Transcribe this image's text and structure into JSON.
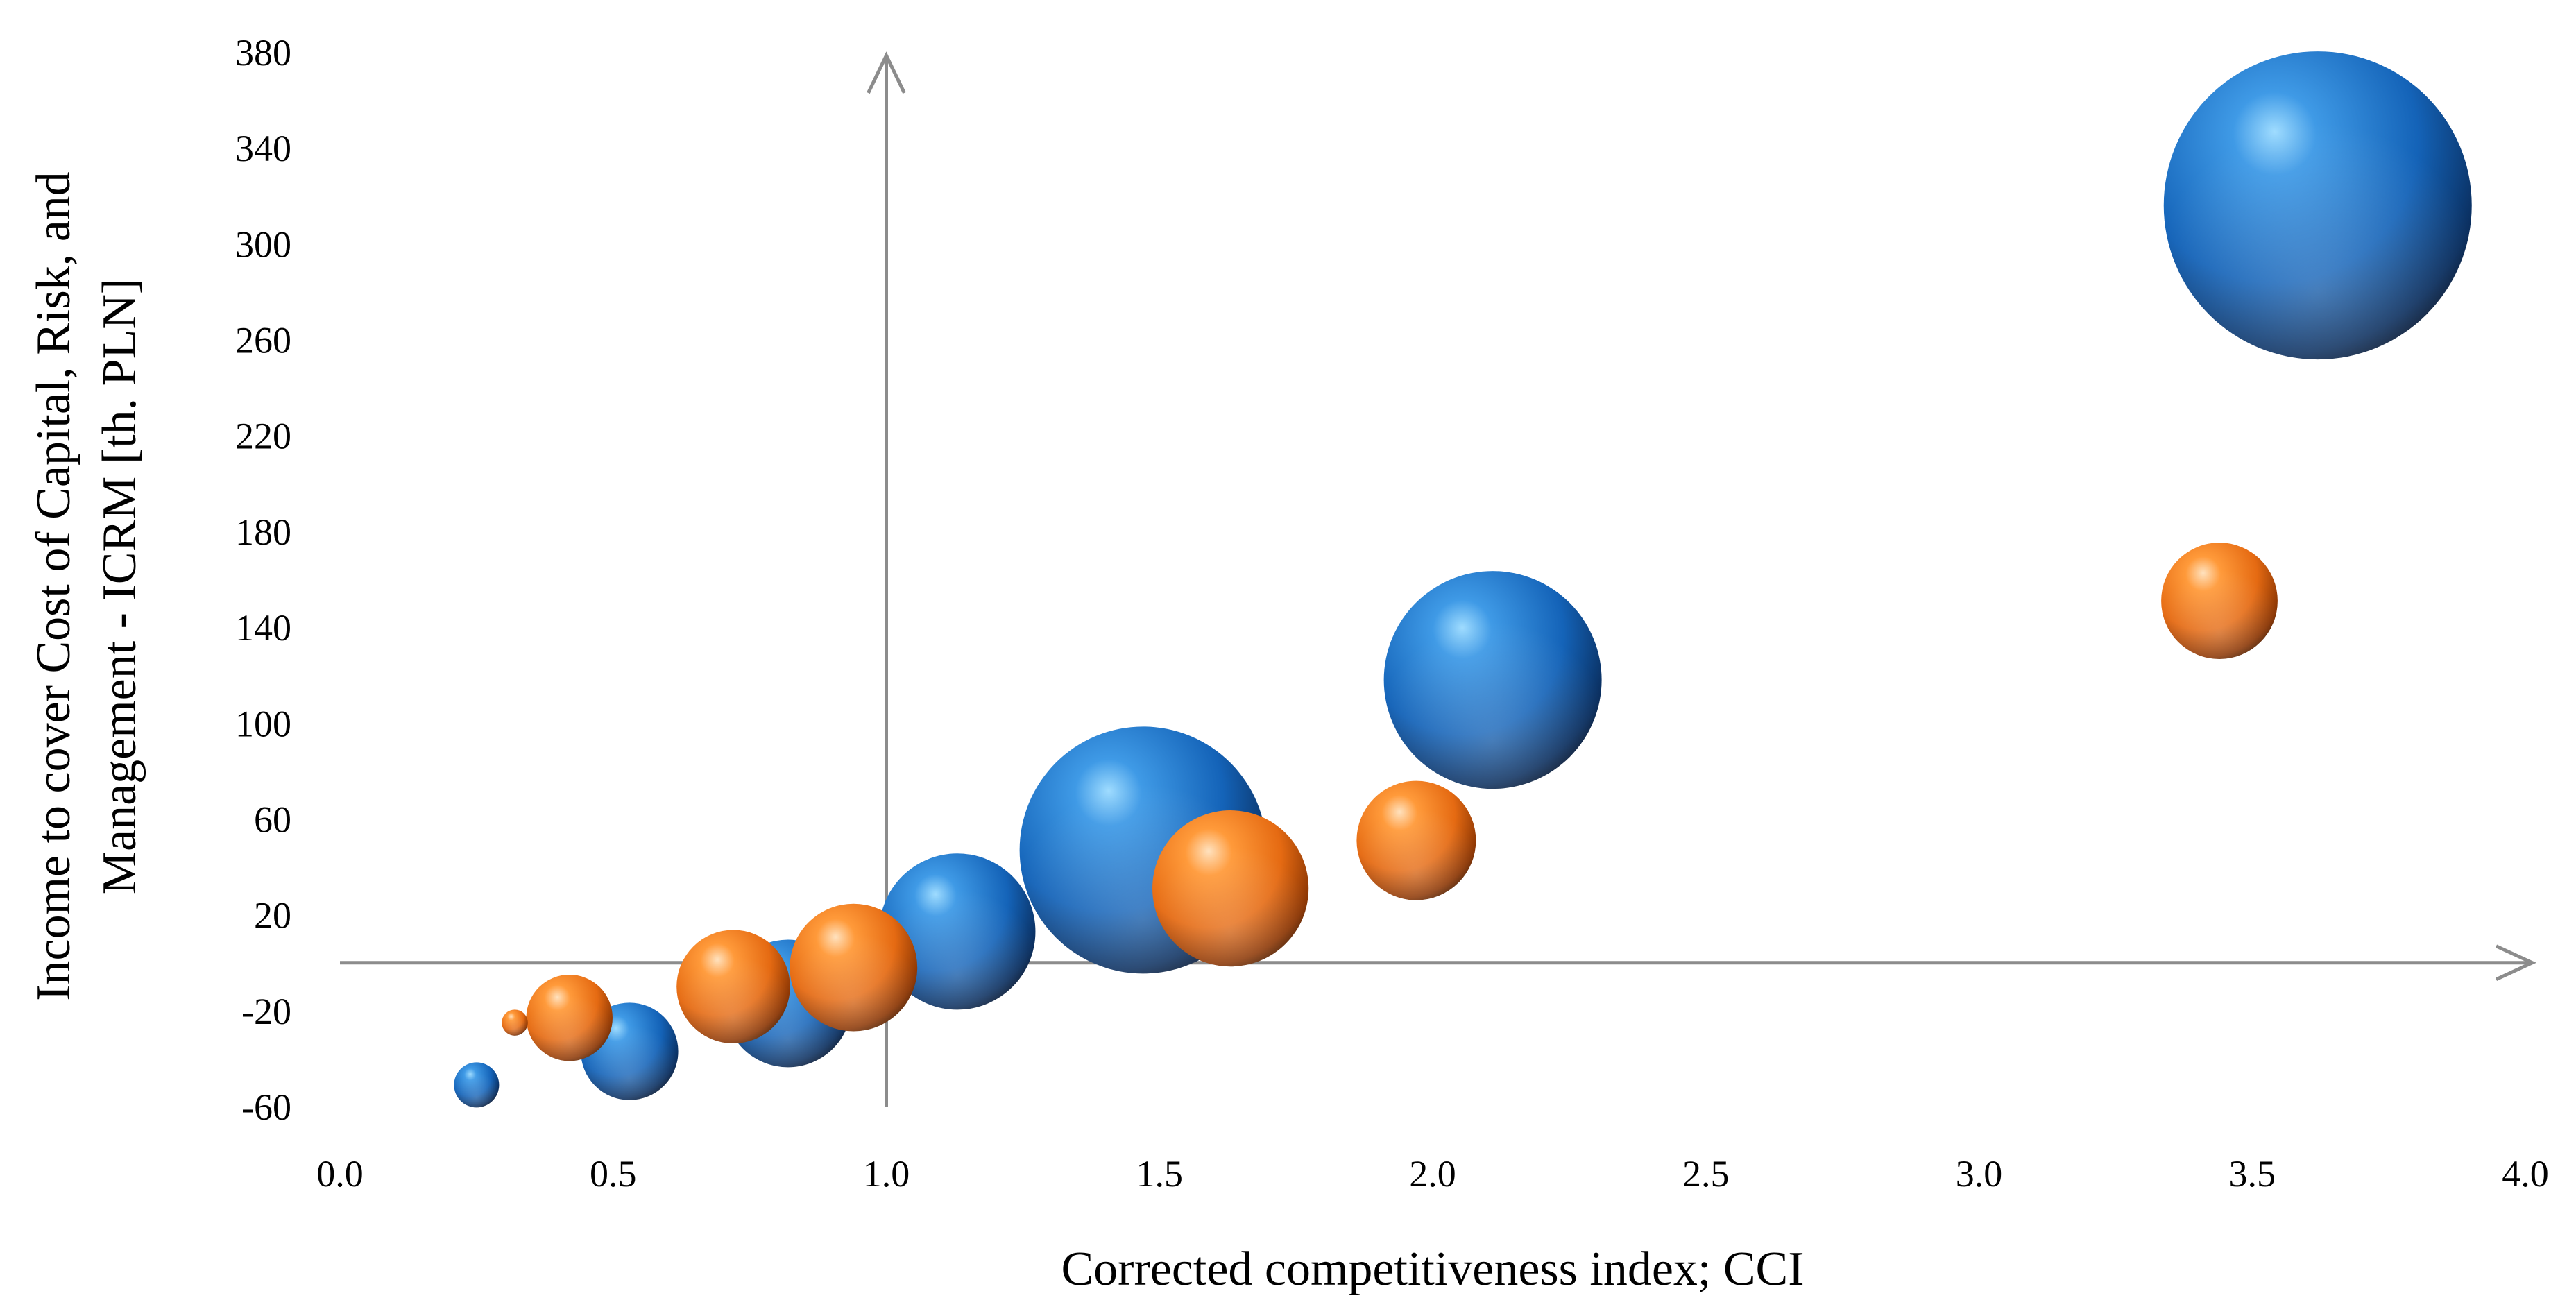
{
  "chart_data": {
    "type": "scatter",
    "title": "",
    "xlabel": "Corrected competitiveness index; CCI",
    "ylabel_lines": [
      "Income to cover Cost of Capital, Risk, and",
      "Management - ICRM [th. PLN]"
    ],
    "xlim": [
      0,
      4
    ],
    "ylim": [
      -60,
      380
    ],
    "x_ticks": [
      "0.0",
      "0.5",
      "1.0",
      "1.5",
      "2.0",
      "2.5",
      "3.0",
      "3.5",
      "4.0"
    ],
    "y_ticks": [
      "380",
      "340",
      "300",
      "260",
      "220",
      "180",
      "140",
      "100",
      "60",
      "20",
      "-20",
      "-60"
    ],
    "crosshair": {
      "x": 1.0,
      "y": 0
    },
    "grid": false,
    "legend": "none",
    "series": [
      {
        "color": "#1f6fc0",
        "points": [
          {
            "x": 0.25,
            "y": -51,
            "size": 3
          },
          {
            "x": 0.53,
            "y": -37,
            "size": 14
          },
          {
            "x": 0.82,
            "y": -17,
            "size": 24
          },
          {
            "x": 1.13,
            "y": 13,
            "size": 36
          },
          {
            "x": 1.47,
            "y": 47,
            "size": 90
          },
          {
            "x": 2.11,
            "y": 118,
            "size": 70
          },
          {
            "x": 3.62,
            "y": 316,
            "size": 140
          }
        ]
      },
      {
        "color": "#f07e1e",
        "points": [
          {
            "x": 0.32,
            "y": -25,
            "size": 1
          },
          {
            "x": 0.42,
            "y": -23,
            "size": 11
          },
          {
            "x": 0.72,
            "y": -10,
            "size": 19
          },
          {
            "x": 0.94,
            "y": -2,
            "size": 24
          },
          {
            "x": 1.63,
            "y": 31,
            "size": 36
          },
          {
            "x": 1.97,
            "y": 51,
            "size": 21
          },
          {
            "x": 3.44,
            "y": 151,
            "size": 20
          }
        ]
      }
    ]
  }
}
